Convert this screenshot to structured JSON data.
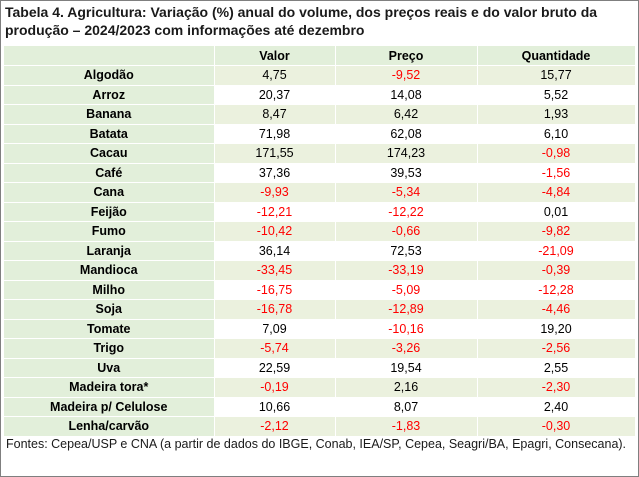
{
  "title": "Tabela 4. Agricultura: Variação (%) anual do volume, dos preços reais e do valor bruto da produção – 2024/2023 com informações até dezembro",
  "columns": [
    "Valor",
    "Preço",
    "Quantidade"
  ],
  "rows": [
    {
      "label": "Algodão",
      "values": [
        "4,75",
        "-9,52",
        "15,77"
      ]
    },
    {
      "label": "Arroz",
      "values": [
        "20,37",
        "14,08",
        "5,52"
      ]
    },
    {
      "label": "Banana",
      "values": [
        "8,47",
        "6,42",
        "1,93"
      ]
    },
    {
      "label": "Batata",
      "values": [
        "71,98",
        "62,08",
        "6,10"
      ]
    },
    {
      "label": "Cacau",
      "values": [
        "171,55",
        "174,23",
        "-0,98"
      ]
    },
    {
      "label": "Café",
      "values": [
        "37,36",
        "39,53",
        "-1,56"
      ]
    },
    {
      "label": "Cana",
      "values": [
        "-9,93",
        "-5,34",
        "-4,84"
      ]
    },
    {
      "label": "Feijão",
      "values": [
        "-12,21",
        "-12,22",
        "0,01"
      ]
    },
    {
      "label": "Fumo",
      "values": [
        "-10,42",
        "-0,66",
        "-9,82"
      ]
    },
    {
      "label": "Laranja",
      "values": [
        "36,14",
        "72,53",
        "-21,09"
      ]
    },
    {
      "label": "Mandioca",
      "values": [
        "-33,45",
        "-33,19",
        "-0,39"
      ]
    },
    {
      "label": "Milho",
      "values": [
        "-16,75",
        "-5,09",
        "-12,28"
      ]
    },
    {
      "label": "Soja",
      "values": [
        "-16,78",
        "-12,89",
        "-4,46"
      ]
    },
    {
      "label": "Tomate",
      "values": [
        "7,09",
        "-10,16",
        "19,20"
      ]
    },
    {
      "label": "Trigo",
      "values": [
        "-5,74",
        "-3,26",
        "-2,56"
      ]
    },
    {
      "label": "Uva",
      "values": [
        "22,59",
        "19,54",
        "2,55"
      ]
    },
    {
      "label": "Madeira tora*",
      "values": [
        "-0,19",
        "2,16",
        "-2,30"
      ]
    },
    {
      "label": "Madeira p/ Celulose",
      "values": [
        "10,66",
        "8,07",
        "2,40"
      ]
    },
    {
      "label": "Lenha/carvão",
      "values": [
        "-2,12",
        "-1,83",
        "-0,30"
      ]
    }
  ],
  "footer": "Fontes: Cepea/USP e CNA (a partir de dados do IBGE, Conab, IEA/SP, Cepea, Seagri/BA, Epagri, Consecana).",
  "colors": {
    "label_bg": "#e2efda",
    "stripe_bg": "#ebf1de",
    "negative": "#ff0000"
  }
}
